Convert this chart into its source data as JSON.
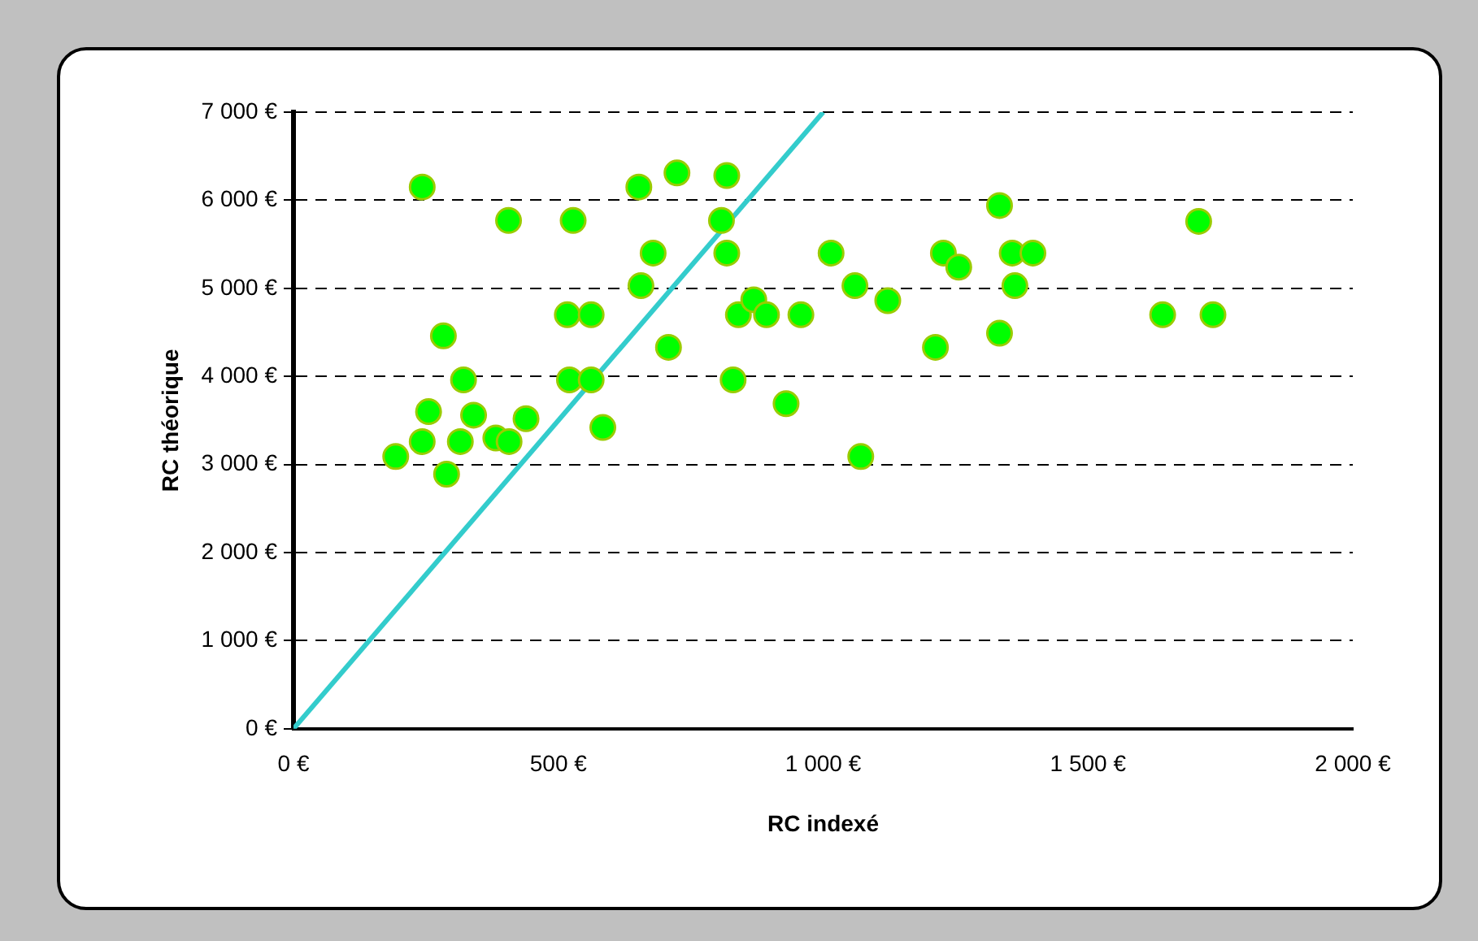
{
  "chart_data": {
    "type": "scatter",
    "xlabel": "RC indexé",
    "ylabel": "RC théorique",
    "xlim": [
      0,
      2000
    ],
    "ylim": [
      0,
      7000
    ],
    "xticks": [
      {
        "value": 0,
        "label": "0 €"
      },
      {
        "value": 500,
        "label": "500 €"
      },
      {
        "value": 1000,
        "label": "1 000 €"
      },
      {
        "value": 1500,
        "label": "1 500 €"
      },
      {
        "value": 2000,
        "label": "2 000 €"
      }
    ],
    "yticks": [
      {
        "value": 0,
        "label": "0 €"
      },
      {
        "value": 1000,
        "label": "1 000 €"
      },
      {
        "value": 2000,
        "label": "2 000 €"
      },
      {
        "value": 3000,
        "label": "3 000 €"
      },
      {
        "value": 4000,
        "label": "4 000 €"
      },
      {
        "value": 5000,
        "label": "5 000 €"
      },
      {
        "value": 6000,
        "label": "6 000 €"
      },
      {
        "value": 7000,
        "label": "7 000 €"
      }
    ],
    "grid": "y",
    "legend": false,
    "marker": "circle",
    "series": [
      {
        "color": "#00ff00",
        "x": [
          243,
          406,
          528,
          652,
          724,
          818,
          808,
          679,
          818,
          656,
          517,
          562,
          840,
          869,
          893,
          958,
          283,
          708,
          321,
          521,
          562,
          830,
          930,
          255,
          340,
          439,
          584,
          243,
          315,
          382,
          407,
          193,
          289,
          1015,
          1060,
          1122,
          1227,
          1256,
          1333,
          1357,
          1396,
          1362,
          1212,
          1333,
          1071,
          1709,
          1641,
          1736
        ],
        "values": [
          6150,
          5770,
          5770,
          6150,
          6310,
          6280,
          5770,
          5400,
          5400,
          5030,
          4700,
          4700,
          4700,
          4870,
          4700,
          4700,
          4460,
          4330,
          3960,
          3960,
          3960,
          3960,
          3690,
          3600,
          3560,
          3520,
          3420,
          3260,
          3260,
          3300,
          3260,
          3090,
          2890,
          5400,
          5030,
          4860,
          5400,
          5240,
          5940,
          5400,
          5400,
          5030,
          4330,
          4490,
          3090,
          5760,
          4700,
          4700
        ]
      },
      {
        "type": "line",
        "color": "#33cccc",
        "x": [
          0,
          1000
        ],
        "values": [
          0,
          7000
        ],
        "marker": "none",
        "line_style": "solid"
      }
    ]
  }
}
